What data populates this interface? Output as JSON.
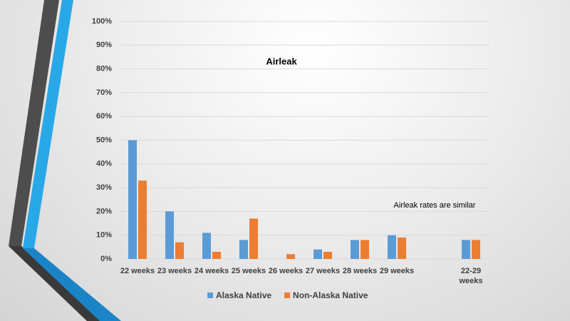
{
  "chart_data": {
    "type": "bar",
    "title": "Airleak",
    "annotation": "Airleak rates are similar",
    "categories": [
      "22 weeks",
      "23 weeks",
      "24 weeks",
      "25 weeks",
      "26 weeks",
      "27 weeks",
      "28 weeks",
      "29 weeks",
      null,
      "22-29 weeks"
    ],
    "series": [
      {
        "name": "Alaska Native",
        "color": "#5b9bd5",
        "values": [
          50,
          20,
          11,
          8,
          0,
          4,
          8,
          10,
          null,
          8
        ]
      },
      {
        "name": "Non-Alaska Native",
        "color": "#ed7d31",
        "values": [
          33,
          7,
          3,
          17,
          2,
          3,
          8,
          9,
          null,
          8
        ]
      }
    ],
    "ylim": [
      0,
      100
    ],
    "yticks": [
      {
        "value": 0,
        "label": "0%"
      },
      {
        "value": 10,
        "label": "10%"
      },
      {
        "value": 20,
        "label": "20%"
      },
      {
        "value": 30,
        "label": "30%"
      },
      {
        "value": 40,
        "label": "40%"
      },
      {
        "value": 50,
        "label": "50%"
      },
      {
        "value": 60,
        "label": "60%"
      },
      {
        "value": 70,
        "label": "70%"
      },
      {
        "value": 80,
        "label": "80%"
      },
      {
        "value": 90,
        "label": "90%"
      },
      {
        "value": 100,
        "label": "100%"
      }
    ],
    "grid": true
  }
}
